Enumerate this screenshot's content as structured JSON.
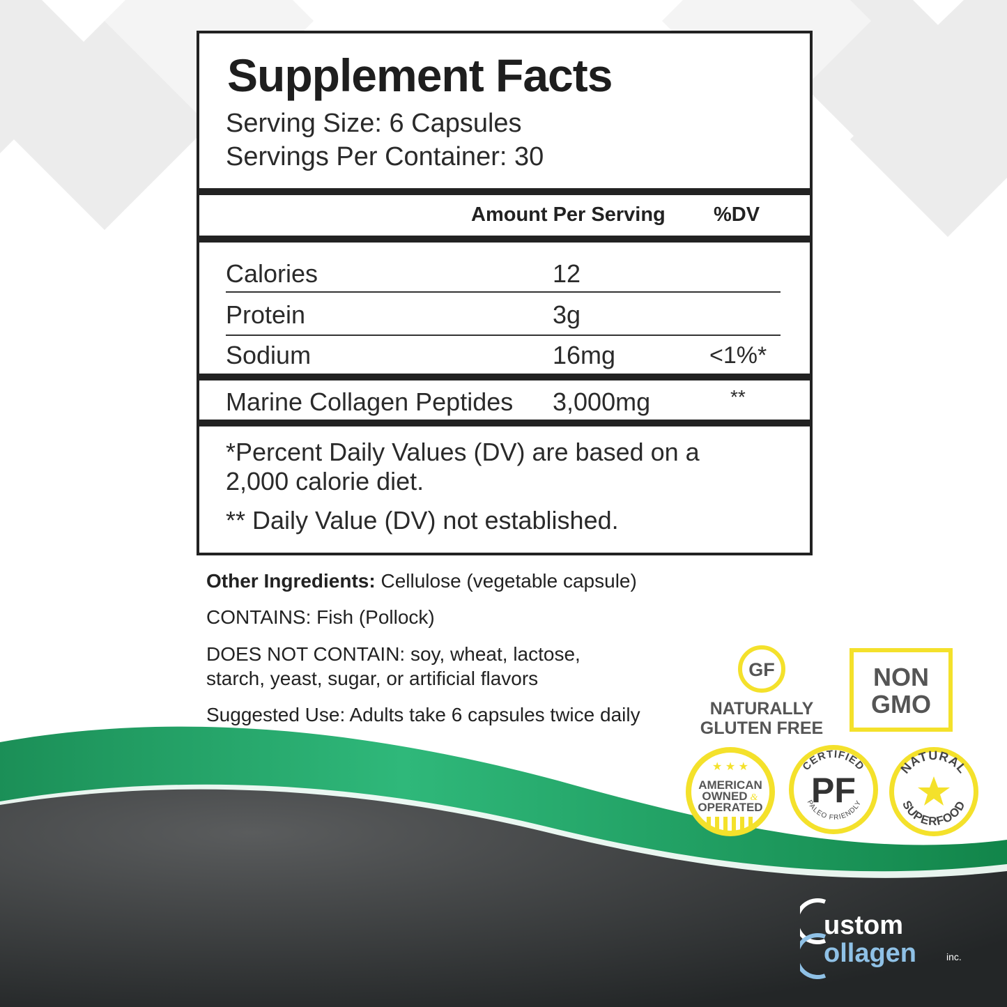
{
  "facts": {
    "title": "Supplement Facts",
    "serving_size": "Serving Size: 6 Capsules",
    "servings_per_container": "Servings Per Container: 30",
    "header_amount": "Amount Per Serving",
    "header_dv": "%DV",
    "rows": [
      {
        "label": "Calories",
        "amount": "12",
        "dv": ""
      },
      {
        "label": "Protein",
        "amount": "3g",
        "dv": ""
      },
      {
        "label": "Sodium",
        "amount": "16mg",
        "dv": "<1%*"
      },
      {
        "label": "Marine Collagen Peptides",
        "amount": "3,000mg",
        "dv": "**"
      }
    ],
    "footnote_1_line1": "*Percent Daily Values (DV) are based on a",
    "footnote_1_line2": "2,000 calorie diet.",
    "footnote_2": "** Daily Value (DV) not established."
  },
  "details": {
    "other_ingredients_label": "Other Ingredients:",
    "other_ingredients_value": " Cellulose (vegetable capsule)",
    "contains": "CONTAINS: Fish (Pollock)",
    "does_not_contain_line1": "DOES NOT CONTAIN: soy, wheat, lactose,",
    "does_not_contain_line2": "starch, yeast, sugar, or artificial flavors",
    "suggested_use": "Suggested Use: Adults take 6 capsules twice daily"
  },
  "badges": {
    "gf_mark": "GF",
    "gf_line1": "NATURALLY",
    "gf_line2": "GLUTEN FREE",
    "nongmo_line1": "NON",
    "nongmo_line2": "GMO",
    "american_line1": "AMERICAN",
    "american_line2": "OWNED",
    "american_amp": "&",
    "american_line3": "OPERATED",
    "pf_top": "CERTIFIED",
    "pf_mark": "PF",
    "pf_bottom": "PALEO FRIENDLY",
    "natural_top": "NATURAL",
    "natural_bottom": "SUPERFOOD"
  },
  "logo": {
    "line1": "ustom",
    "line2": "ollagen",
    "suffix": "inc."
  },
  "colors": {
    "badge_yellow": "#f4e12b",
    "green": "#1f9e5c",
    "dark": "#2e3132"
  }
}
